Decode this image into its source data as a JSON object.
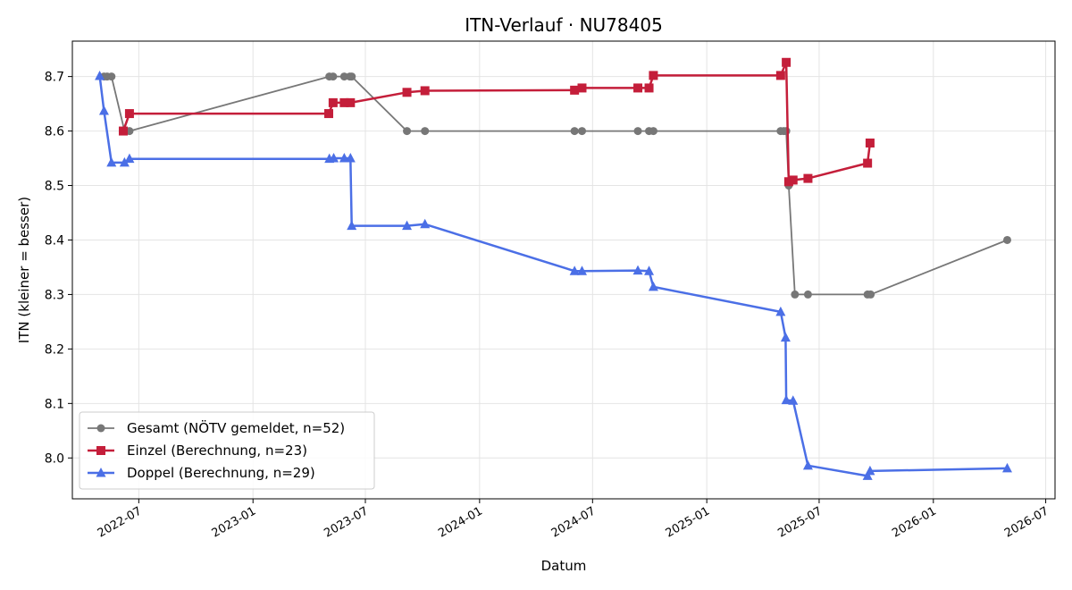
{
  "chart_data": {
    "type": "line",
    "title": "ITN-Verlauf · NU78405",
    "xlabel": "Datum",
    "ylabel": "ITN  (kleiner = besser)",
    "x_axis_type": "date",
    "xlim": [
      "2022-03-16",
      "2026-07-16"
    ],
    "ylim": [
      7.925,
      8.765
    ],
    "x_ticks": [
      "2022-07-01",
      "2023-01-01",
      "2023-07-01",
      "2024-01-01",
      "2024-07-01",
      "2025-01-01",
      "2025-07-01",
      "2026-01-01",
      "2026-07-01"
    ],
    "x_tick_labels": [
      "2022-07",
      "2023-01",
      "2023-07",
      "2024-01",
      "2024-07",
      "2025-01",
      "2025-07",
      "2026-01",
      "2026-07"
    ],
    "y_ticks": [
      8.0,
      8.1,
      8.2,
      8.3,
      8.4,
      8.5,
      8.6,
      8.7
    ],
    "y_tick_labels": [
      "8.0",
      "8.1",
      "8.2",
      "8.3",
      "8.4",
      "8.5",
      "8.6",
      "8.7"
    ],
    "grid": true,
    "legend_position": "lower-left",
    "series": [
      {
        "name": "Gesamt (NÖTV gemeldet, n=52)",
        "color": "#777777",
        "marker": "circle",
        "points": [
          [
            "2022-05-06",
            8.7
          ],
          [
            "2022-05-11",
            8.7
          ],
          [
            "2022-05-18",
            8.7
          ],
          [
            "2022-06-08",
            8.6
          ],
          [
            "2022-06-16",
            8.6
          ],
          [
            "2023-05-04",
            8.7
          ],
          [
            "2023-05-10",
            8.7
          ],
          [
            "2023-05-28",
            8.7
          ],
          [
            "2023-06-06",
            8.7
          ],
          [
            "2023-06-09",
            8.7
          ],
          [
            "2023-09-06",
            8.6
          ],
          [
            "2023-10-05",
            8.6
          ],
          [
            "2024-06-02",
            8.6
          ],
          [
            "2024-06-14",
            8.6
          ],
          [
            "2024-09-12",
            8.6
          ],
          [
            "2024-09-30",
            8.6
          ],
          [
            "2024-10-07",
            8.6
          ],
          [
            "2025-04-30",
            8.6
          ],
          [
            "2025-05-05",
            8.6
          ],
          [
            "2025-05-09",
            8.6
          ],
          [
            "2025-05-13",
            8.5
          ],
          [
            "2025-05-23",
            8.3
          ],
          [
            "2025-06-13",
            8.3
          ],
          [
            "2025-09-17",
            8.3
          ],
          [
            "2025-09-22",
            8.3
          ],
          [
            "2026-04-30",
            8.4
          ]
        ]
      },
      {
        "name": "Einzel (Berechnung, n=23)",
        "color": "#c41e3a",
        "marker": "square",
        "points": [
          [
            "2022-06-06",
            8.6
          ],
          [
            "2022-06-16",
            8.632
          ],
          [
            "2023-05-03",
            8.632
          ],
          [
            "2023-05-10",
            8.652
          ],
          [
            "2023-05-28",
            8.652
          ],
          [
            "2023-06-07",
            8.652
          ],
          [
            "2023-09-06",
            8.671
          ],
          [
            "2023-10-05",
            8.674
          ],
          [
            "2024-06-02",
            8.675
          ],
          [
            "2024-06-14",
            8.679
          ],
          [
            "2024-09-12",
            8.679
          ],
          [
            "2024-09-30",
            8.679
          ],
          [
            "2024-10-07",
            8.702
          ],
          [
            "2025-04-30",
            8.702
          ],
          [
            "2025-05-09",
            8.726
          ],
          [
            "2025-05-13",
            8.507
          ],
          [
            "2025-05-20",
            8.51
          ],
          [
            "2025-06-13",
            8.513
          ],
          [
            "2025-09-17",
            8.541
          ],
          [
            "2025-09-21",
            8.578
          ]
        ]
      },
      {
        "name": "Doppel (Berechnung, n=29)",
        "color": "#4b6fe6",
        "marker": "triangle",
        "points": [
          [
            "2022-04-29",
            8.701
          ],
          [
            "2022-05-06",
            8.637
          ],
          [
            "2022-05-18",
            8.542
          ],
          [
            "2022-06-08",
            8.542
          ],
          [
            "2022-06-16",
            8.549
          ],
          [
            "2023-05-04",
            8.549
          ],
          [
            "2023-05-11",
            8.55
          ],
          [
            "2023-05-28",
            8.55
          ],
          [
            "2023-06-07",
            8.55
          ],
          [
            "2023-06-09",
            8.426
          ],
          [
            "2023-09-06",
            8.426
          ],
          [
            "2023-10-05",
            8.429
          ],
          [
            "2024-06-02",
            8.343
          ],
          [
            "2024-06-14",
            8.343
          ],
          [
            "2024-09-12",
            8.344
          ],
          [
            "2024-09-30",
            8.343
          ],
          [
            "2024-10-07",
            8.314
          ],
          [
            "2025-04-30",
            8.268
          ],
          [
            "2025-05-08",
            8.221
          ],
          [
            "2025-05-09",
            8.106
          ],
          [
            "2025-05-20",
            8.105
          ],
          [
            "2025-06-13",
            7.986
          ],
          [
            "2025-09-17",
            7.967
          ],
          [
            "2025-09-21",
            7.976
          ],
          [
            "2026-04-30",
            7.981
          ]
        ]
      }
    ]
  }
}
